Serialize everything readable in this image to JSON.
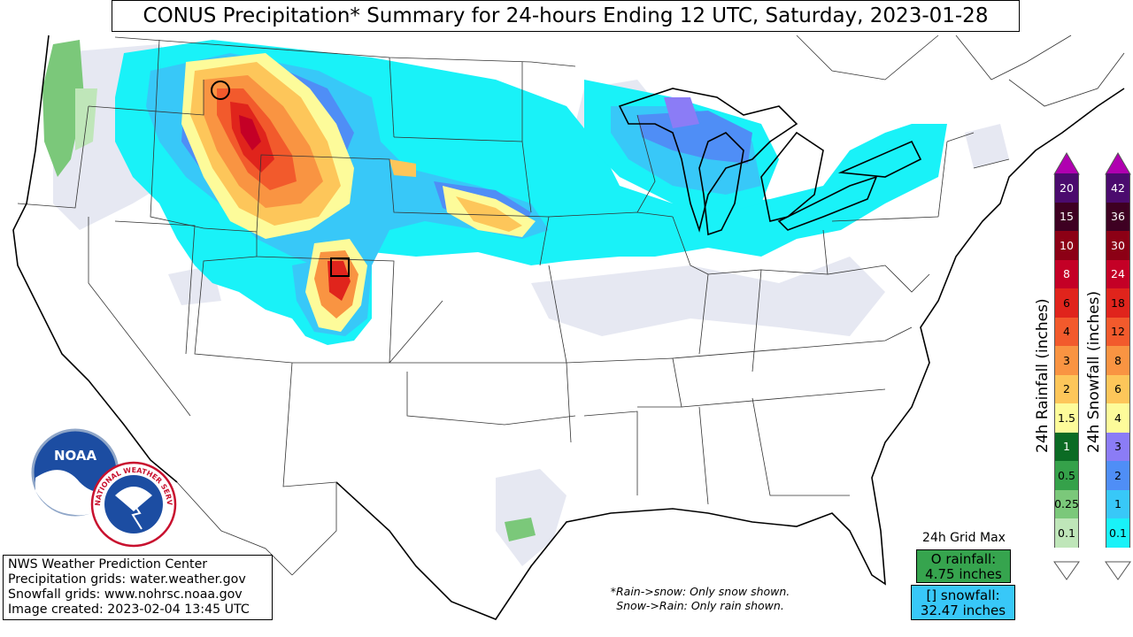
{
  "title": "CONUS Precipitation* Summary for 24-hours Ending 12 UTC, Saturday, 2023-01-28",
  "credits": {
    "line1": "NWS Weather Prediction Center",
    "line2": "Precipitation grids: water.weather.gov",
    "line3": "Snowfall grids: www.nohrsc.noaa.gov",
    "line4": "Image created: 2023-02-04 13:45 UTC"
  },
  "note": {
    "line1": "*Rain->snow: Only snow shown.",
    "line2": "Snow->Rain: Only rain shown."
  },
  "grid_max": {
    "title": "24h Grid Max",
    "rain_label": "O rainfall:",
    "rain_value": "4.75 inches",
    "snow_label": "[] snowfall:",
    "snow_value": "32.47 inches"
  },
  "logos": {
    "noaa_text": "NOAA",
    "nws_text": "NATIONAL WEATHER SERVICE"
  },
  "rainfall_legend": {
    "label": "24h Rainfall (inches)",
    "bins": [
      {
        "value": "20",
        "color": "#4b0b6e"
      },
      {
        "value": "15",
        "color": "#3e0022"
      },
      {
        "value": "10",
        "color": "#8c0015"
      },
      {
        "value": "8",
        "color": "#c40026"
      },
      {
        "value": "6",
        "color": "#e0241c"
      },
      {
        "value": "4",
        "color": "#f25a2c"
      },
      {
        "value": "3",
        "color": "#f99442"
      },
      {
        "value": "2",
        "color": "#fdc65a"
      },
      {
        "value": "1.5",
        "color": "#fdfb9a"
      },
      {
        "value": "1",
        "color": "#0b6b24"
      },
      {
        "value": "0.5",
        "color": "#35a14a"
      },
      {
        "value": "0.25",
        "color": "#7bc87a"
      },
      {
        "value": "0.1",
        "color": "#bfe6b9"
      }
    ]
  },
  "snowfall_legend": {
    "label": "24h Snowfall (inches)",
    "bins": [
      {
        "value": "42",
        "color": "#4b0b6e"
      },
      {
        "value": "36",
        "color": "#3e0022"
      },
      {
        "value": "30",
        "color": "#8c0015"
      },
      {
        "value": "24",
        "color": "#c40026"
      },
      {
        "value": "18",
        "color": "#e0241c"
      },
      {
        "value": "12",
        "color": "#f25a2c"
      },
      {
        "value": "8",
        "color": "#f99442"
      },
      {
        "value": "6",
        "color": "#fdc65a"
      },
      {
        "value": "4",
        "color": "#fdfb9a"
      },
      {
        "value": "3",
        "color": "#8b7cf6"
      },
      {
        "value": "2",
        "color": "#4f8ef6"
      },
      {
        "value": "1",
        "color": "#38c8f8"
      },
      {
        "value": "0.1",
        "color": "#19f2f8"
      }
    ]
  },
  "colors": {
    "trace": "#e6e8f2",
    "snow_light": "#19f2f8",
    "snow_1": "#38c8f8",
    "snow_2": "#4f8ef6",
    "snow_3": "#8b7cf6",
    "rain_light": "#7bc87a"
  }
}
